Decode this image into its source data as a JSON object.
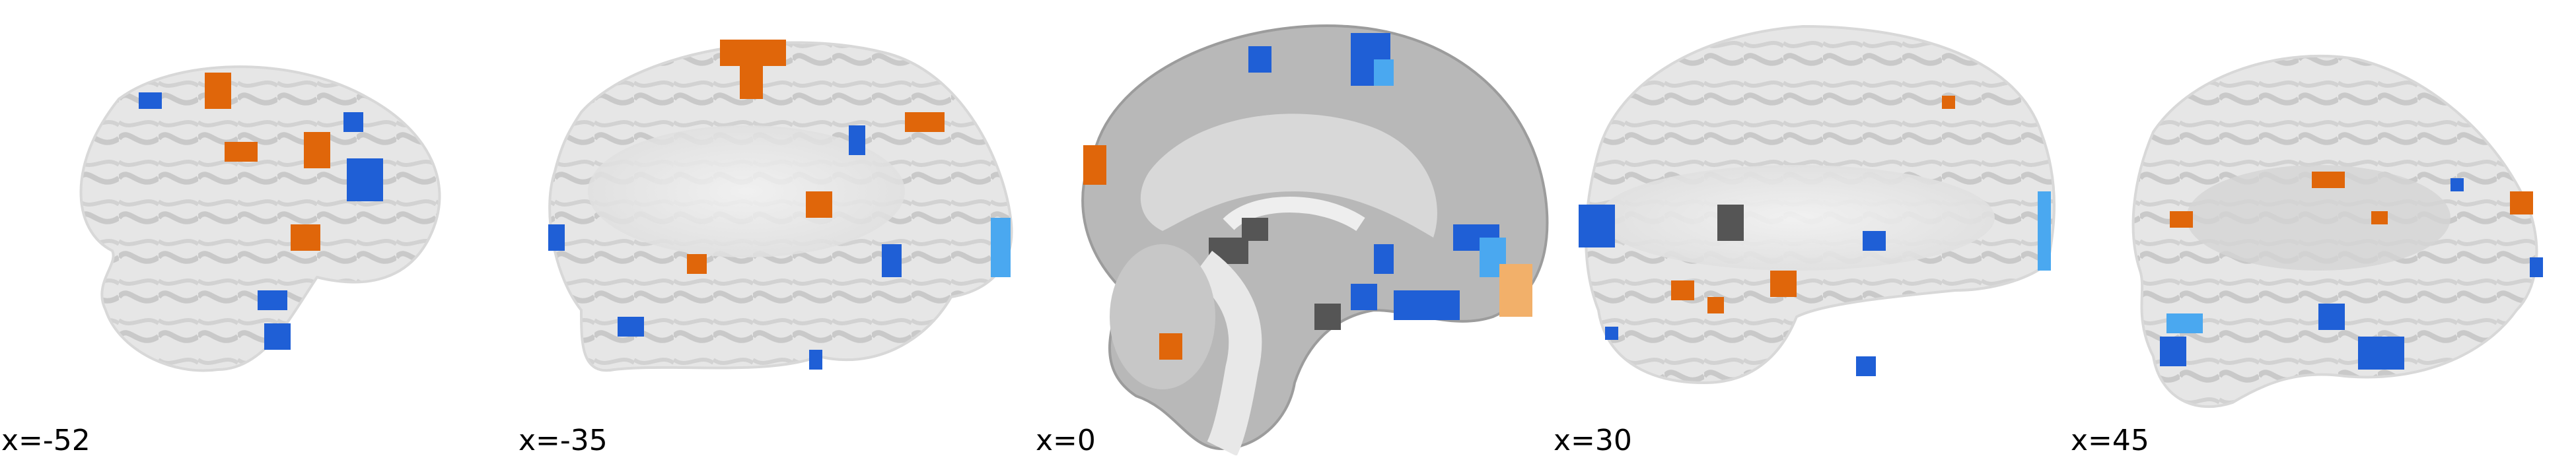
{
  "figure": {
    "slices": [
      {
        "label": "x=-52"
      },
      {
        "label": "x=-35"
      },
      {
        "label": "x=0"
      },
      {
        "label": "x=30"
      },
      {
        "label": "x=45"
      }
    ],
    "colors": {
      "background": "#ffffff",
      "brain_light": "#e4e4e4",
      "brain_mid": "#cfcfcf",
      "brain_dark": "#a6a6a6",
      "ventricle": "#555555",
      "positive_activation": "#e0660a",
      "negative_activation": "#1f5fd6",
      "negative_activation_light": "#4aa8f0"
    }
  }
}
